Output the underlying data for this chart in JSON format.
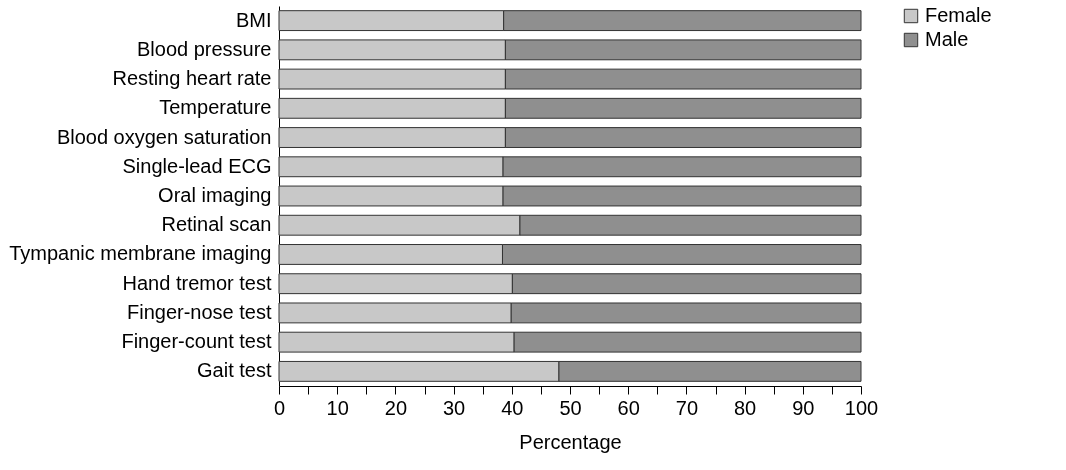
{
  "chart_data": {
    "type": "bar",
    "orientation": "horizontal",
    "stacked": true,
    "xlabel": "Percentage",
    "categories": [
      "BMI",
      "Blood pressure",
      "Resting heart rate",
      "Temperature",
      "Blood oxygen saturation",
      "Single-lead ECG",
      "Oral imaging",
      "Retinal scan",
      "Tympanic membrane imaging",
      "Hand tremor test",
      "Finger-nose test",
      "Finger-count test",
      "Gait test"
    ],
    "series": [
      {
        "name": "Female",
        "color": "#c8c8c8",
        "values": [
          38.6,
          38.9,
          38.9,
          38.9,
          38.9,
          38.5,
          38.5,
          41.4,
          38.4,
          40.1,
          39.9,
          40.4,
          48.1
        ]
      },
      {
        "name": "Male",
        "color": "#8f8f8f",
        "values": [
          61.4,
          61.1,
          61.1,
          61.1,
          61.1,
          61.5,
          61.5,
          58.6,
          61.6,
          59.9,
          60.1,
          59.6,
          51.9
        ]
      }
    ],
    "xlim": [
      0,
      100
    ],
    "xticks": [
      0,
      {
        "value": 5,
        "label": null
      },
      10,
      {
        "value": 15,
        "label": null
      },
      20,
      {
        "value": 25,
        "label": null
      },
      30,
      {
        "value": 35,
        "label": null
      },
      40,
      {
        "value": 45,
        "label": null
      },
      50,
      {
        "value": 55,
        "label": null
      },
      60,
      {
        "value": 65,
        "label": null
      },
      70,
      {
        "value": 75,
        "label": null
      },
      80,
      {
        "value": 85,
        "label": null
      },
      90,
      {
        "value": 95,
        "label": null
      },
      100
    ],
    "grid": false,
    "legend": "right"
  }
}
